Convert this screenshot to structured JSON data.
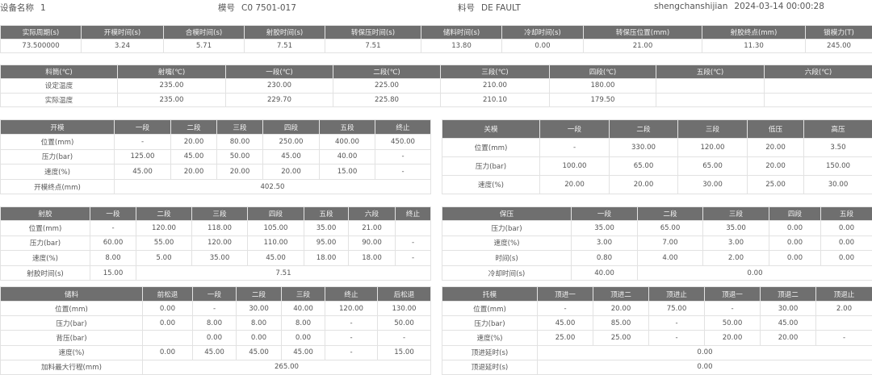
{
  "header": {
    "device_label": "设备名称",
    "device_value": "1",
    "mold_label": "模号",
    "mold_value": "C0 7501-017",
    "material_label": "料号",
    "material_value": "DE FAULT",
    "time_label": "shengchanshijian",
    "time_value": "2024-03-14 00:00:28"
  },
  "colors": {
    "header_bg": "#6f6f6f",
    "header_text": "#f2f2f2",
    "border": "#e2e2e2",
    "text": "#555555"
  },
  "tables": [
    {
      "id": "cycle",
      "headers": [
        "实际周期(s)",
        "开模时间(s)",
        "合模时间(s)",
        "射胶时间(s)",
        "转保压时间(s)",
        "储料时间(s)",
        "冷却时间(s)",
        "转保压位置(mm)",
        "射胶终点(mm)",
        "锁模力(T)"
      ],
      "rows": [
        [
          "73.500000",
          "3.24",
          "5.71",
          "7.51",
          "7.51",
          "13.80",
          "0.00",
          "21.00",
          "11.30",
          "245.00"
        ]
      ]
    },
    {
      "id": "barrel",
      "headers": [
        "料筒(℃)",
        "射嘴(℃)",
        "一段(℃)",
        "二段(℃)",
        "三段(℃)",
        "四段(℃)",
        "五段(℃)",
        "六段(℃)"
      ],
      "rows": [
        [
          "设定温度",
          "235.00",
          "230.00",
          "225.00",
          "210.00",
          "180.00",
          "",
          ""
        ],
        [
          "实际温度",
          "235.00",
          "229.70",
          "225.80",
          "210.10",
          "179.50",
          "",
          ""
        ]
      ]
    },
    {
      "id": "mold-open",
      "headers": [
        "开模",
        "一段",
        "二段",
        "三段",
        "四段",
        "五段",
        "终止"
      ],
      "rows": [
        [
          "位置(mm)",
          "-",
          "20.00",
          "80.00",
          "250.00",
          "400.00",
          "450.00"
        ],
        [
          "压力(bar)",
          "125.00",
          "45.00",
          "50.00",
          "45.00",
          "40.00",
          "-"
        ],
        [
          "速度(%)",
          "45.00",
          "20.00",
          "20.00",
          "20.00",
          "15.00",
          "-"
        ],
        [
          "开模终点(mm)",
          "402.50"
        ]
      ]
    },
    {
      "id": "mold-close",
      "headers": [
        "关模",
        "一段",
        "二段",
        "三段",
        "低压",
        "高压"
      ],
      "rows": [
        [
          "位置(mm)",
          "-",
          "330.00",
          "120.00",
          "20.00",
          "3.50"
        ],
        [
          "压力(bar)",
          "100.00",
          "65.00",
          "65.00",
          "20.00",
          "150.00"
        ],
        [
          "速度(%)",
          "20.00",
          "20.00",
          "30.00",
          "25.00",
          "30.00"
        ]
      ]
    },
    {
      "id": "injection",
      "headers": [
        "射胶",
        "一段",
        "二段",
        "三段",
        "四段",
        "五段",
        "六段",
        "终止"
      ],
      "rows": [
        [
          "位置(mm)",
          "-",
          "120.00",
          "118.00",
          "105.00",
          "35.00",
          "21.00",
          ""
        ],
        [
          "压力(bar)",
          "60.00",
          "55.00",
          "120.00",
          "110.00",
          "95.00",
          "90.00",
          "-"
        ],
        [
          "速度(%)",
          "8.00",
          "5.00",
          "35.00",
          "45.00",
          "18.00",
          "18.00",
          "-"
        ],
        [
          "射胶时间(s)",
          "15.00",
          "7.51"
        ]
      ]
    },
    {
      "id": "holding",
      "headers": [
        "保压",
        "一段",
        "二段",
        "三段",
        "四段",
        "五段"
      ],
      "rows": [
        [
          "压力(bar)",
          "35.00",
          "65.00",
          "35.00",
          "0.00",
          "0.00"
        ],
        [
          "速度(%)",
          "3.00",
          "7.00",
          "3.00",
          "0.00",
          "0.00"
        ],
        [
          "时间(s)",
          "0.80",
          "4.00",
          "2.00",
          "0.00",
          "0.00"
        ],
        [
          "冷却时间(s)",
          "40.00",
          "0.00"
        ]
      ]
    },
    {
      "id": "charging",
      "headers": [
        "储料",
        "前松退",
        "一段",
        "二段",
        "三段",
        "终止",
        "后松退"
      ],
      "rows": [
        [
          "位置(mm)",
          "0.00",
          "-",
          "30.00",
          "40.00",
          "120.00",
          "130.00"
        ],
        [
          "压力(bar)",
          "0.00",
          "8.00",
          "8.00",
          "8.00",
          "-",
          "50.00"
        ],
        [
          "背压(bar)",
          "",
          "0.00",
          "0.00",
          "0.00",
          "-",
          "-"
        ],
        [
          "速度(%)",
          "0.00",
          "45.00",
          "45.00",
          "45.00",
          "-",
          "15.00"
        ],
        [
          "加料最大行程(mm)",
          "265.00"
        ]
      ]
    },
    {
      "id": "ejector",
      "headers": [
        "托模",
        "顶进一",
        "顶进二",
        "顶进止",
        "顶退一",
        "顶退二",
        "顶退止"
      ],
      "rows": [
        [
          "位置(mm)",
          "-",
          "20.00",
          "75.00",
          "-",
          "30.00",
          "2.00"
        ],
        [
          "压力(bar)",
          "45.00",
          "85.00",
          "-",
          "50.00",
          "45.00",
          ""
        ],
        [
          "速度(%)",
          "25.00",
          "25.00",
          "-",
          "20.00",
          "20.00",
          "-"
        ],
        [
          "顶进延时(s)",
          "0.00"
        ],
        [
          "顶退延时(s)",
          "0.00"
        ]
      ]
    }
  ]
}
